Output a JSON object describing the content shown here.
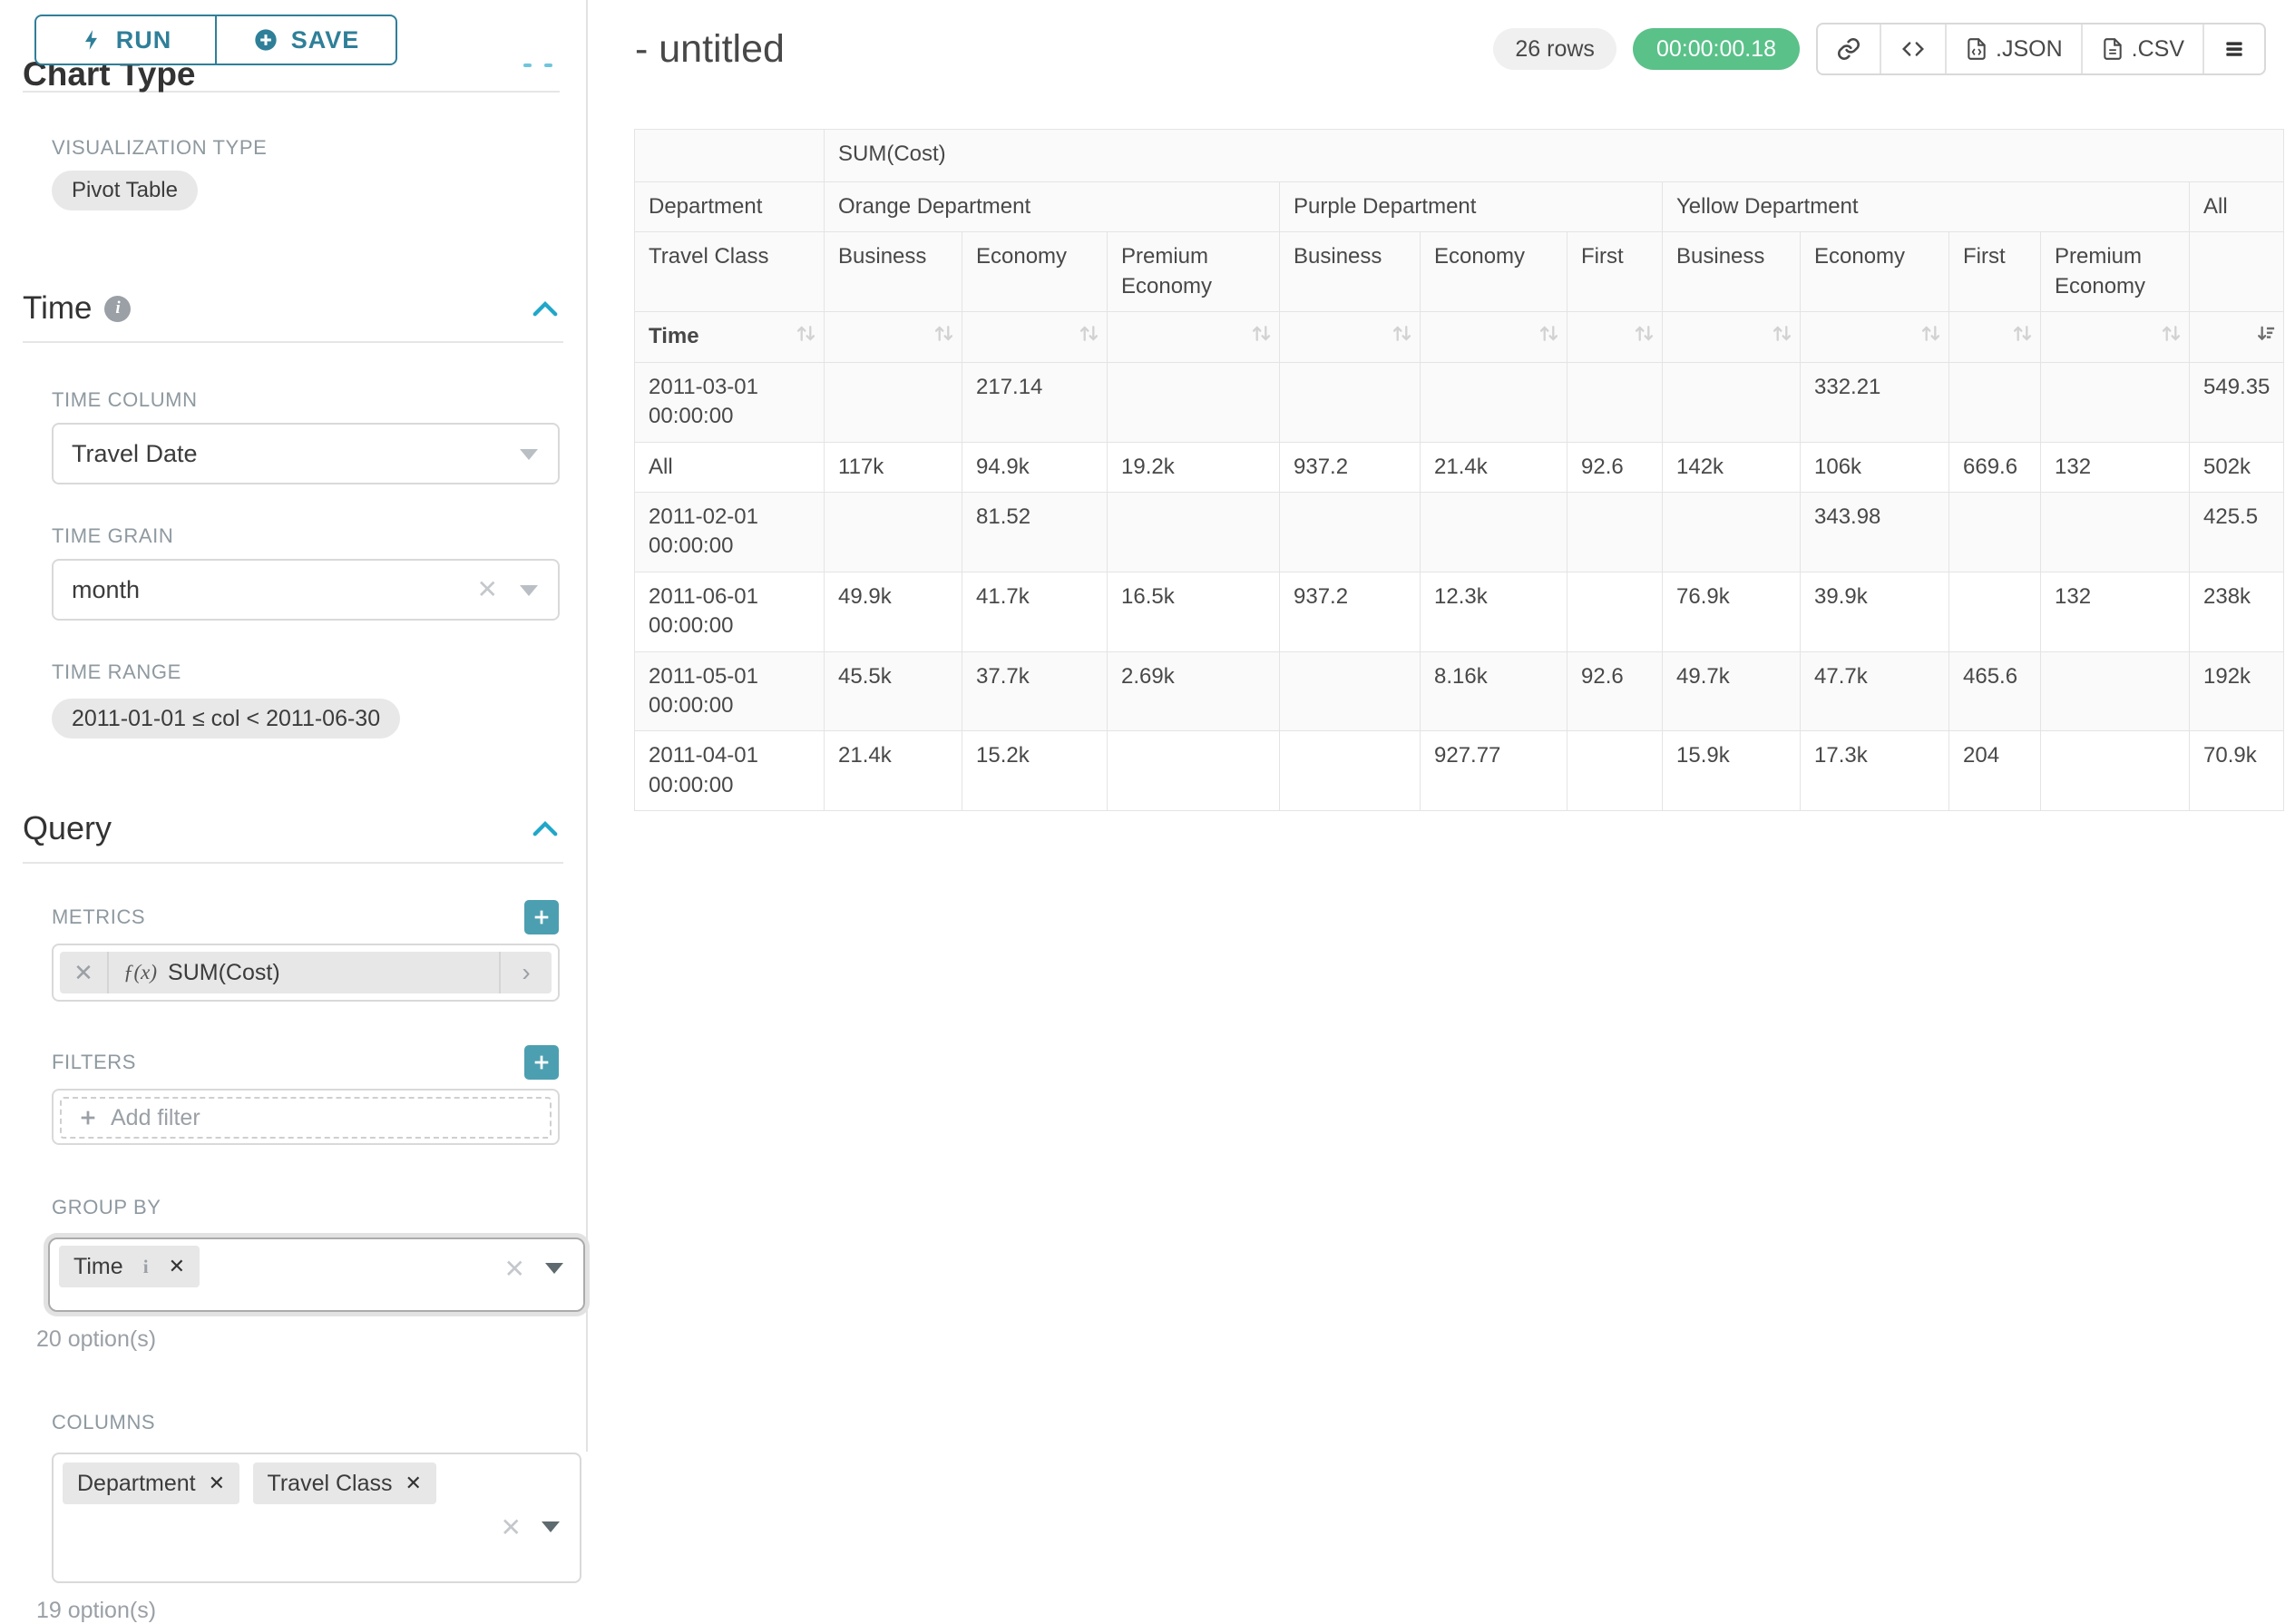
{
  "accent": {
    "teal": "#2f7f99",
    "primary_blue": "#20a7c9",
    "green": "#5ac189",
    "plus_button": "#4c9fb0"
  },
  "panel": {
    "run_label": "RUN",
    "save_label": "SAVE",
    "scrolled_heading": "Chart Type",
    "viz_type": {
      "label": "VISUALIZATION TYPE",
      "value": "Pivot Table"
    },
    "time_section": {
      "title": "Time",
      "time_column": {
        "label": "TIME COLUMN",
        "value": "Travel Date"
      },
      "time_grain": {
        "label": "TIME GRAIN",
        "value": "month"
      },
      "time_range": {
        "label": "TIME RANGE",
        "value": "2011-01-01 ≤ col < 2011-06-30"
      }
    },
    "query_section": {
      "title": "Query",
      "metrics": {
        "label": "METRICS",
        "metric_prefix": "ƒ(x)",
        "metric_name": "SUM(Cost)"
      },
      "filters": {
        "label": "FILTERS",
        "placeholder": "Add filter"
      },
      "group_by": {
        "label": "GROUP BY",
        "values": [
          "Time"
        ],
        "options_hint": "20 option(s)"
      },
      "columns": {
        "label": "COLUMNS",
        "values": [
          "Department",
          "Travel Class"
        ],
        "options_hint": "19 option(s)"
      }
    }
  },
  "header": {
    "title": "- untitled",
    "rows_badge": "26 rows",
    "timer": "00:00:00.18",
    "export_json_label": ".JSON",
    "export_csv_label": ".CSV"
  },
  "pivot": {
    "metric_header": "SUM(Cost)",
    "row_dim_label": "Department",
    "class_dim_label": "Travel Class",
    "sort_row_label": "Time",
    "sorted_column": "All",
    "sort_direction": "desc",
    "groups": [
      {
        "name": "Orange Department",
        "classes": [
          "Business",
          "Economy",
          "Premium Economy"
        ]
      },
      {
        "name": "Purple Department",
        "classes": [
          "Business",
          "Economy",
          "First"
        ]
      },
      {
        "name": "Yellow Department",
        "classes": [
          "Business",
          "Economy",
          "First",
          "Premium Economy"
        ]
      },
      {
        "name": "All",
        "classes": [
          ""
        ]
      }
    ],
    "rows": [
      {
        "label": "2011-03-01 00:00:00",
        "values": [
          "",
          "217.14",
          "",
          "",
          "",
          "",
          "",
          "332.21",
          "",
          "",
          "549.35"
        ]
      },
      {
        "label": "All",
        "values": [
          "117k",
          "94.9k",
          "19.2k",
          "937.2",
          "21.4k",
          "92.6",
          "142k",
          "106k",
          "669.6",
          "132",
          "502k"
        ]
      },
      {
        "label": "2011-02-01 00:00:00",
        "values": [
          "",
          "81.52",
          "",
          "",
          "",
          "",
          "",
          "343.98",
          "",
          "",
          "425.5"
        ]
      },
      {
        "label": "2011-06-01 00:00:00",
        "values": [
          "49.9k",
          "41.7k",
          "16.5k",
          "937.2",
          "12.3k",
          "",
          "76.9k",
          "39.9k",
          "",
          "132",
          "238k"
        ]
      },
      {
        "label": "2011-05-01 00:00:00",
        "values": [
          "45.5k",
          "37.7k",
          "2.69k",
          "",
          "8.16k",
          "92.6",
          "49.7k",
          "47.7k",
          "465.6",
          "",
          "192k"
        ]
      },
      {
        "label": "2011-04-01 00:00:00",
        "values": [
          "21.4k",
          "15.2k",
          "",
          "",
          "927.77",
          "",
          "15.9k",
          "17.3k",
          "204",
          "",
          "70.9k"
        ]
      }
    ]
  }
}
